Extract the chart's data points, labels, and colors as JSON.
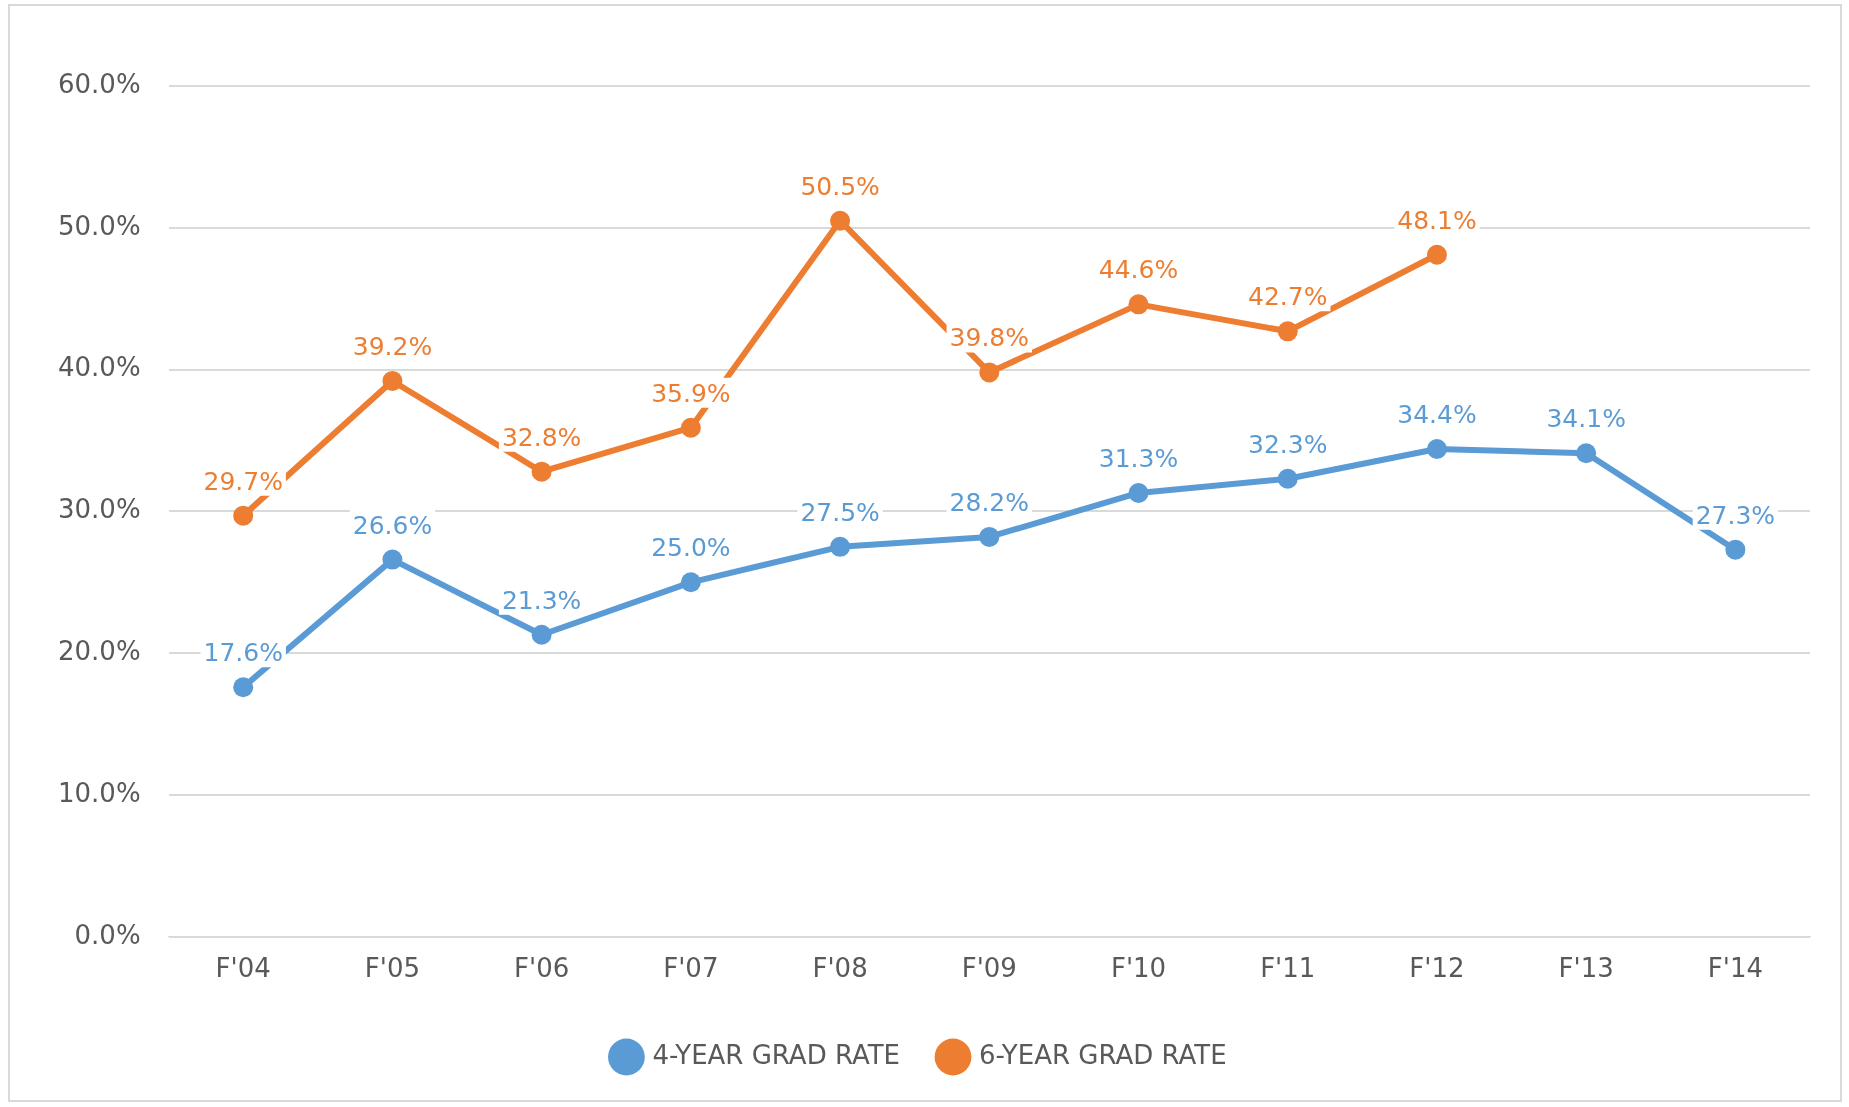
{
  "chart_data": {
    "type": "line",
    "categories": [
      "F'04",
      "F'05",
      "F'06",
      "F'07",
      "F'08",
      "F'09",
      "F'10",
      "F'11",
      "F'12",
      "F'13",
      "F'14"
    ],
    "series": [
      {
        "name": "4-YEAR GRAD RATE",
        "color": "#5b9bd5",
        "values": [
          17.6,
          26.6,
          21.3,
          25.0,
          27.5,
          28.2,
          31.3,
          32.3,
          34.4,
          34.1,
          27.3
        ],
        "value_labels": [
          "17.6%",
          "26.6%",
          "21.3%",
          "25.0%",
          "27.5%",
          "28.2%",
          "31.3%",
          "32.3%",
          "34.4%",
          "34.1%",
          "27.3%"
        ]
      },
      {
        "name": "6-YEAR GRAD RATE",
        "color": "#ed7d31",
        "values": [
          29.7,
          39.2,
          32.8,
          35.9,
          50.5,
          39.8,
          44.6,
          42.7,
          48.1,
          null,
          null
        ],
        "value_labels": [
          "29.7%",
          "39.2%",
          "32.8%",
          "35.9%",
          "50.5%",
          "39.8%",
          "44.6%",
          "42.7%",
          "48.1%",
          null,
          null
        ]
      }
    ],
    "ylim": [
      0,
      60
    ],
    "yticks": [
      {
        "value": 0,
        "label": "0.0%"
      },
      {
        "value": 10,
        "label": "10.0%"
      },
      {
        "value": 20,
        "label": "20.0%"
      },
      {
        "value": 30,
        "label": "30.0%"
      },
      {
        "value": 40,
        "label": "40.0%"
      },
      {
        "value": 50,
        "label": "50.0%"
      },
      {
        "value": 60,
        "label": "60.0%"
      }
    ],
    "grid": "y",
    "legend": "bottom",
    "marker": "circle",
    "line_style": "solid"
  }
}
